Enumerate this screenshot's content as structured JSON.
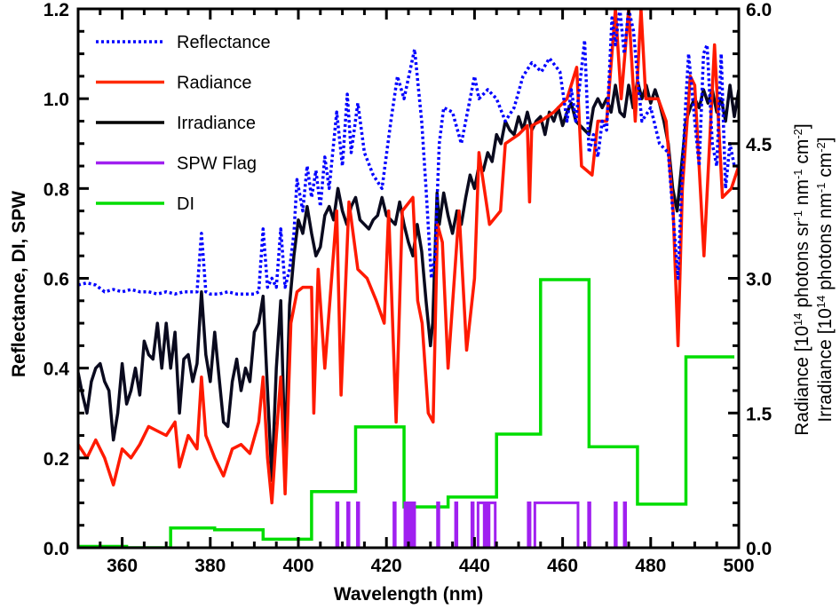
{
  "chart_data": {
    "type": "line",
    "xlabel": "Wavelength (nm)",
    "ylabel": "Reflectance, DI, SPW",
    "y2label_lines": [
      {
        "parts": [
          "Radiance [10",
          "14",
          " photons sr",
          "-1",
          " nm",
          "-1",
          " cm",
          "-2",
          "]"
        ]
      },
      {
        "parts": [
          "Irradiance [10",
          "14",
          " photons nm",
          "-1",
          " cm",
          "-2",
          "]"
        ]
      }
    ],
    "xlim": [
      350,
      500
    ],
    "ylim": [
      0,
      1.2
    ],
    "y2lim": [
      0,
      6.0
    ],
    "xticks": [
      "360",
      "380",
      "400",
      "420",
      "440",
      "460",
      "480",
      "500"
    ],
    "yticks": [
      "0.0",
      "0.2",
      "0.4",
      "0.6",
      "0.8",
      "1.0",
      "1.2"
    ],
    "y2ticks": [
      "0.0",
      "1.5",
      "3.0",
      "4.5",
      "6.0"
    ],
    "legend_position": "top-left",
    "legend": [
      {
        "label": "Reflectance",
        "color": "#0000ff",
        "style": "dotted"
      },
      {
        "label": "Radiance",
        "color": "#ff2a00",
        "style": "solid"
      },
      {
        "label": "Irradiance",
        "color": "#000000",
        "style": "solid"
      },
      {
        "label": "SPW Flag",
        "color": "#a020f0",
        "style": "solid"
      },
      {
        "label": "DI",
        "color": "#00dd00",
        "style": "solid"
      }
    ],
    "series": [
      {
        "name": "Irradiance",
        "axis": "right",
        "color": "#0a0a1e",
        "x": [
          350,
          351,
          352,
          353,
          354,
          355,
          356,
          357,
          358,
          359,
          360,
          361,
          362,
          363,
          364,
          365,
          366,
          367,
          368,
          369,
          370,
          371,
          372,
          373,
          374,
          375,
          376,
          377,
          378,
          379,
          380,
          381,
          382,
          383,
          384,
          385,
          386,
          387,
          388,
          389,
          390,
          391,
          392,
          393,
          394,
          395,
          396,
          397,
          398,
          399,
          400,
          401,
          402,
          403,
          404,
          405,
          406,
          407,
          408,
          409,
          410,
          411,
          412,
          413,
          414,
          415,
          416,
          417,
          418,
          419,
          420,
          421,
          422,
          423,
          424,
          425,
          426,
          427,
          428,
          429,
          430,
          430.5,
          431.5,
          432,
          433,
          434,
          435,
          436,
          437,
          438,
          439,
          440,
          441,
          442,
          443,
          444,
          445,
          446,
          447,
          448,
          449,
          450,
          451,
          452,
          453,
          454,
          455,
          456,
          457,
          458,
          459,
          460,
          461,
          462,
          463,
          464,
          465,
          466,
          467,
          468,
          469,
          470,
          471,
          472,
          473,
          474,
          475,
          476,
          477,
          478,
          479,
          480,
          481,
          482,
          483,
          484,
          485,
          486,
          487,
          488,
          489,
          490,
          491,
          492,
          493,
          494,
          495,
          496,
          497,
          498,
          499,
          500
        ],
        "y": [
          1.95,
          1.7,
          1.5,
          1.85,
          2.0,
          2.05,
          1.85,
          1.75,
          1.2,
          1.5,
          2.05,
          1.6,
          1.75,
          2.0,
          1.7,
          2.3,
          2.15,
          2.1,
          2.5,
          2.0,
          2.5,
          2.0,
          2.4,
          1.5,
          2.1,
          2.15,
          1.85,
          2.05,
          2.85,
          2.15,
          1.85,
          2.4,
          1.9,
          1.4,
          1.35,
          1.85,
          2.1,
          1.75,
          2.0,
          1.85,
          2.4,
          2.5,
          2.8,
          1.75,
          0.75,
          2.0,
          2.75,
          1.0,
          2.7,
          3.25,
          3.65,
          3.5,
          3.8,
          3.5,
          3.25,
          3.35,
          3.7,
          3.8,
          3.65,
          4.0,
          3.75,
          3.6,
          3.8,
          3.9,
          3.65,
          3.6,
          3.55,
          3.65,
          3.7,
          3.9,
          3.7,
          3.65,
          3.6,
          3.85,
          3.6,
          3.4,
          3.25,
          3.6,
          3.3,
          2.75,
          2.25,
          2.5,
          3.95,
          3.6,
          3.95,
          3.7,
          3.5,
          3.75,
          3.6,
          3.9,
          4.15,
          4.0,
          4.25,
          4.2,
          4.4,
          4.3,
          4.6,
          4.5,
          4.75,
          4.65,
          4.6,
          4.8,
          4.65,
          4.85,
          4.65,
          4.75,
          4.8,
          4.6,
          4.85,
          4.75,
          4.9,
          4.7,
          4.85,
          4.95,
          4.75,
          4.7,
          4.65,
          4.6,
          4.9,
          5.0,
          4.9,
          5.0,
          4.85,
          5.15,
          4.85,
          4.8,
          5.15,
          4.9,
          5.2,
          5.0,
          5.15,
          4.95,
          5.1,
          4.95,
          4.75,
          4.5,
          4.0,
          3.75,
          4.25,
          4.75,
          4.9,
          5.0,
          4.9,
          5.1,
          4.95,
          5.1,
          4.85,
          5.0,
          4.75,
          5.15,
          4.8,
          5.1
        ]
      },
      {
        "name": "Radiance",
        "axis": "right",
        "color": "#ff1a00",
        "x": [
          350,
          352,
          354,
          356,
          358,
          360,
          362,
          364,
          366,
          368,
          370,
          372,
          373,
          375,
          377,
          378,
          379,
          381,
          383,
          385,
          387,
          389,
          391,
          392,
          393,
          394,
          395,
          396,
          397,
          398.3,
          399.7,
          401,
          403,
          403.5,
          404.5,
          406,
          408.7,
          409.7,
          411.5,
          413.5,
          415.6,
          417.7,
          419.5,
          420.5,
          422.2,
          423.6,
          426,
          427.1,
          428.1,
          429.5,
          430.6,
          431.6,
          432.7,
          434,
          436.5,
          438.2,
          440,
          441,
          443.4,
          445.9,
          447,
          450,
          452,
          452.5,
          453,
          455,
          458,
          461,
          463.2,
          464.3,
          466.7,
          468,
          470,
          472,
          473.3,
          475,
          476.5,
          477.8,
          478.9,
          480,
          481.7,
          483.5,
          485.1,
          486.2,
          487.2,
          489,
          490,
          492.1,
          494.5,
          496.3,
          498.3,
          500
        ],
        "y": [
          1.15,
          1.0,
          1.2,
          1.0,
          0.7,
          1.1,
          1.0,
          1.15,
          1.35,
          1.3,
          1.25,
          1.4,
          0.9,
          1.25,
          1.1,
          1.9,
          1.25,
          1.0,
          0.8,
          1.1,
          1.15,
          1.05,
          1.4,
          1.9,
          1.0,
          0.5,
          1.25,
          1.9,
          0.6,
          2.5,
          2.85,
          2.9,
          2.9,
          1.5,
          3.1,
          2.0,
          3.75,
          1.7,
          3.85,
          3.1,
          3.0,
          2.75,
          2.5,
          3.75,
          1.4,
          3.75,
          3.9,
          2.75,
          2.5,
          1.5,
          1.4,
          3.6,
          3.4,
          2.0,
          3.75,
          2.2,
          3.0,
          4.4,
          3.6,
          3.75,
          4.5,
          4.6,
          4.7,
          3.85,
          4.7,
          4.75,
          4.85,
          5.0,
          5.35,
          4.25,
          4.15,
          4.75,
          4.75,
          6.0,
          5.0,
          6.0,
          4.75,
          6.0,
          5.0,
          5.0,
          5.0,
          4.75,
          3.75,
          2.25,
          4.0,
          5.25,
          5.15,
          3.25,
          5.6,
          3.9,
          4.0,
          4.25
        ]
      },
      {
        "name": "Reflectance",
        "axis": "left",
        "color": "#0000ff",
        "x": [
          350,
          352,
          354,
          356,
          358,
          360,
          362,
          364,
          366,
          368,
          370,
          372,
          374,
          376,
          377,
          378,
          379,
          380,
          382,
          384,
          386,
          388,
          390,
          391,
          392,
          393,
          394,
          395,
          396,
          397,
          398,
          399,
          399.7,
          401,
          402,
          403,
          404,
          405,
          406,
          407,
          408.7,
          410,
          411.1,
          412,
          413.5,
          415,
          417,
          419,
          421,
          422.5,
          424,
          426.4,
          428,
          429,
          430.2,
          431,
          432,
          433,
          435,
          437,
          440,
          441,
          443,
          445,
          447,
          449,
          451,
          453,
          455.2,
          457,
          459.4,
          461,
          462,
          463,
          465,
          466,
          467,
          468,
          469,
          470,
          471.2,
          472,
          473,
          474,
          475,
          476.1,
          477,
          478,
          480,
          482,
          484,
          485,
          486.2,
          487,
          488,
          488.6,
          490,
          491,
          492,
          492.8,
          494,
          495,
          496,
          497,
          498,
          499,
          500
        ],
        "y": [
          0.585,
          0.59,
          0.585,
          0.57,
          0.575,
          0.57,
          0.575,
          0.57,
          0.57,
          0.565,
          0.57,
          0.565,
          0.57,
          0.57,
          0.57,
          0.7,
          0.57,
          0.565,
          0.565,
          0.57,
          0.565,
          0.565,
          0.565,
          0.57,
          0.71,
          0.58,
          0.6,
          0.58,
          0.71,
          0.58,
          0.62,
          0.7,
          0.82,
          0.75,
          0.85,
          0.78,
          0.84,
          0.76,
          0.87,
          0.8,
          0.97,
          0.85,
          1.01,
          0.88,
          0.99,
          0.88,
          0.83,
          0.8,
          0.95,
          1.05,
          1.0,
          1.11,
          0.95,
          0.8,
          0.6,
          0.65,
          0.9,
          0.98,
          0.97,
          0.9,
          1.05,
          1.0,
          1.02,
          1.0,
          0.95,
          0.98,
          1.05,
          1.08,
          1.06,
          1.09,
          1.06,
          0.95,
          1.02,
          0.95,
          1.13,
          0.88,
          0.92,
          0.87,
          0.95,
          0.93,
          1.18,
          1.12,
          1.2,
          1.1,
          1.2,
          1.15,
          1.05,
          0.95,
          0.98,
          0.9,
          0.88,
          0.75,
          0.6,
          0.8,
          1.0,
          1.1,
          0.95,
          0.85,
          1.1,
          1.12,
          0.9,
          0.85,
          1.1,
          0.8,
          0.9,
          0.85,
          0.85
        ]
      },
      {
        "name": "DI",
        "axis": "left",
        "color": "#00dd00",
        "type": "step",
        "edges": [
          350,
          361,
          371,
          381,
          392,
          403,
          413,
          424,
          434,
          445,
          455,
          466,
          477,
          488,
          499
        ],
        "values": [
          0.003,
          0.0,
          0.044,
          0.04,
          0.019,
          0.125,
          0.269,
          0.091,
          0.113,
          0.253,
          0.597,
          0.225,
          0.097,
          0.425
        ]
      },
      {
        "name": "SPW Flag",
        "axis": "left",
        "color": "#a020f0",
        "type": "flag",
        "flag_value": 0.1,
        "on_intervals": [
          [
            408.7,
            409.0
          ],
          [
            411.2,
            411.5
          ],
          [
            413.4,
            413.7
          ],
          [
            421.7,
            422.0
          ],
          [
            424.2,
            424.5
          ],
          [
            424.8,
            425.1
          ],
          [
            425.5,
            425.8
          ],
          [
            426.1,
            426.4
          ],
          [
            431.6,
            431.9
          ],
          [
            435.7,
            436.0
          ],
          [
            439.4,
            439.7
          ],
          [
            440.8,
            442.2
          ],
          [
            442.5,
            443.0
          ],
          [
            443.3,
            444.7
          ],
          [
            452.2,
            452.6
          ],
          [
            453.7,
            463.5
          ],
          [
            465.9,
            466.2
          ],
          [
            471.9,
            472.2
          ],
          [
            474.0,
            474.3
          ]
        ]
      }
    ]
  }
}
